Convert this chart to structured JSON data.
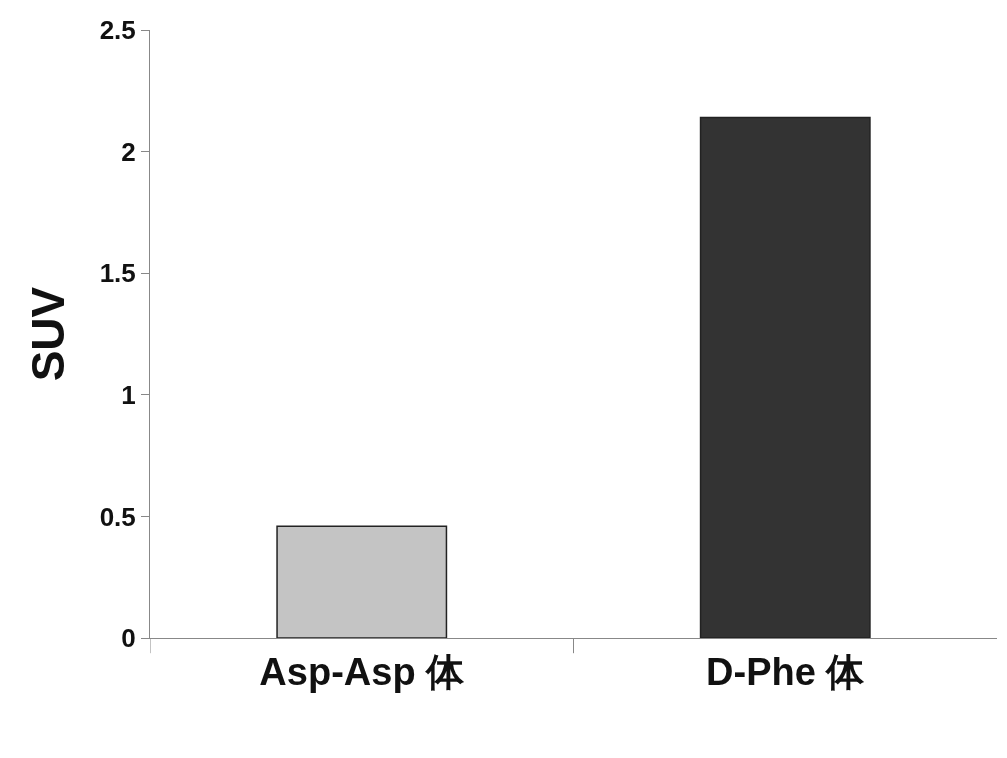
{
  "chart_data": {
    "type": "bar",
    "ylabel": "SUV",
    "categories": [
      "Asp-Asp 体",
      "D-Phe 体"
    ],
    "values": [
      0.46,
      2.14
    ],
    "colors": [
      "#c4c4c4",
      "#333333"
    ],
    "ylim": [
      0,
      2.5
    ],
    "yticks": [
      0,
      0.5,
      1,
      1.5,
      2,
      2.5
    ]
  }
}
